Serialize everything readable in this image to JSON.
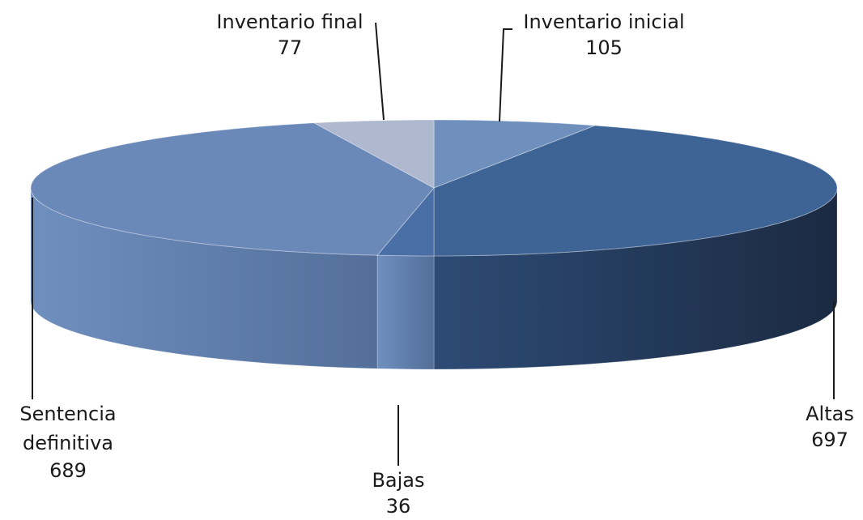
{
  "chart_data": {
    "type": "pie",
    "title": "",
    "style": "3d-exploded-none",
    "slices": [
      {
        "label": "Inventario inicial",
        "value": 105,
        "color": "#6f90bd"
      },
      {
        "label": "Altas",
        "value": 697,
        "color": "#3e6496"
      },
      {
        "label": "Bajas",
        "value": 36,
        "color": "#4a6fa6"
      },
      {
        "label": "Sentencia definitiva",
        "value": 689,
        "color": "#6a88b8"
      },
      {
        "label": "Inventario final",
        "value": 77,
        "color": "#aeb8cf"
      }
    ],
    "labels": {
      "inventario_inicial": {
        "name": "Inventario inicial",
        "value": "105"
      },
      "altas": {
        "name": "Altas",
        "value": "697"
      },
      "bajas": {
        "name": "Bajas",
        "value": "36"
      },
      "sentencia": {
        "name_line1": "Sentencia",
        "name_line2": "definitiva",
        "value": "689"
      },
      "inventario_final": {
        "name": "Inventario final",
        "value": "77"
      }
    }
  }
}
